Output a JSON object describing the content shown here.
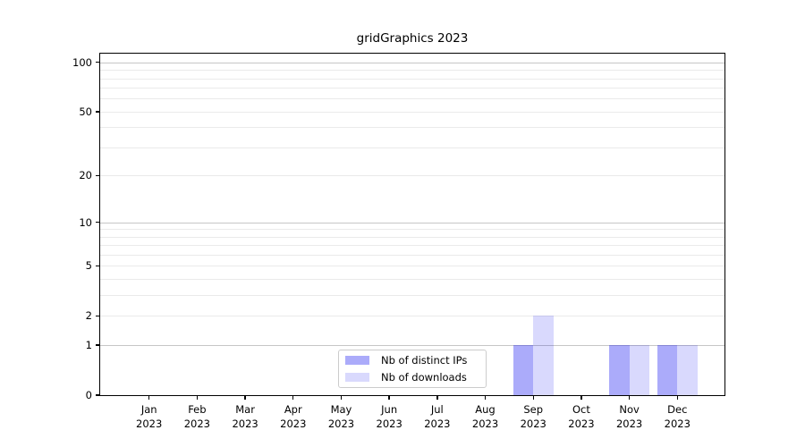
{
  "figure": {
    "background": "#ffffff"
  },
  "chart_data": {
    "type": "bar",
    "title": "gridGraphics 2023",
    "categories": [
      "Jan",
      "Feb",
      "Mar",
      "Apr",
      "May",
      "Jun",
      "Jul",
      "Aug",
      "Sep",
      "Oct",
      "Nov",
      "Dec"
    ],
    "year_label": "2023",
    "series": [
      {
        "name": "Nb of distinct IPs",
        "color_hex": "#0000f0",
        "alpha": 0.33,
        "values": [
          0,
          0,
          0,
          0,
          0,
          0,
          0,
          0,
          1,
          0,
          1,
          1
        ]
      },
      {
        "name": "Nb of downloads",
        "color_hex": "#0000f0",
        "alpha": 0.15,
        "values": [
          0,
          0,
          0,
          0,
          0,
          0,
          0,
          0,
          2,
          0,
          1,
          1
        ]
      }
    ],
    "xlabel": "",
    "ylabel": "",
    "yscale": "log1p",
    "ylim": [
      0,
      113
    ],
    "yticks": [
      0,
      1,
      2,
      5,
      10,
      20,
      50,
      100
    ],
    "grid": true,
    "gridlines": {
      "major": [
        1,
        10,
        100
      ],
      "minor": [
        2,
        3,
        4,
        5,
        6,
        7,
        8,
        9,
        20,
        30,
        40,
        50,
        60,
        70,
        80,
        90
      ],
      "major_color": "#c6c6c6",
      "minor_color": "#eaeaea"
    },
    "legend_position": "bottom-center",
    "legend_border_color": "#cccccc",
    "axis_color": "#000000",
    "text_color": "#000000"
  }
}
